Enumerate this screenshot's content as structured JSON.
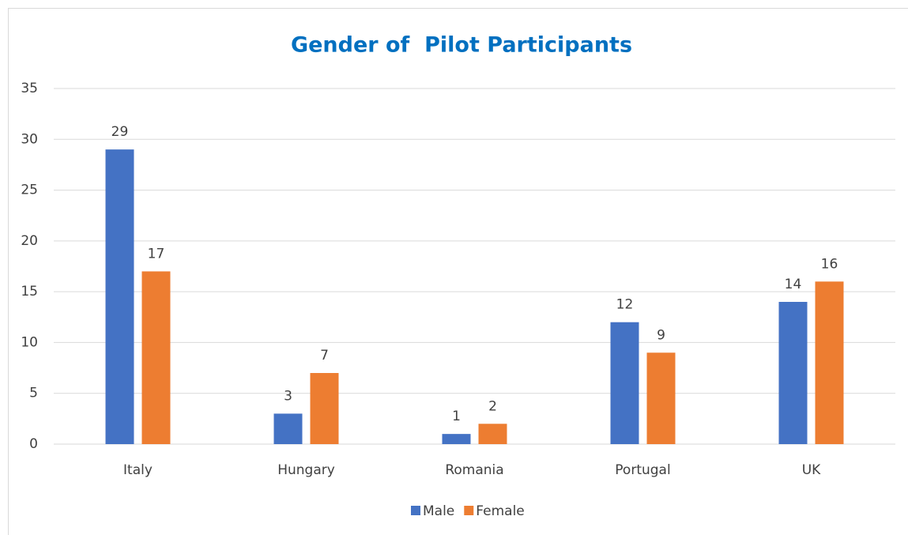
{
  "chart_data": {
    "type": "bar",
    "title": "Gender of  Pilot Participants",
    "categories": [
      "Italy",
      "Hungary",
      "Romania",
      "Portugal",
      "UK"
    ],
    "series": [
      {
        "name": "Male",
        "color": "#4472c4",
        "values": [
          29,
          3,
          1,
          12,
          14
        ]
      },
      {
        "name": "Female",
        "color": "#ed7d31",
        "values": [
          17,
          7,
          2,
          9,
          16
        ]
      }
    ],
    "ylim": [
      0,
      35
    ],
    "yticks": [
      0,
      5,
      10,
      15,
      20,
      25,
      30,
      35
    ],
    "grid": true,
    "legend": "bottom"
  }
}
